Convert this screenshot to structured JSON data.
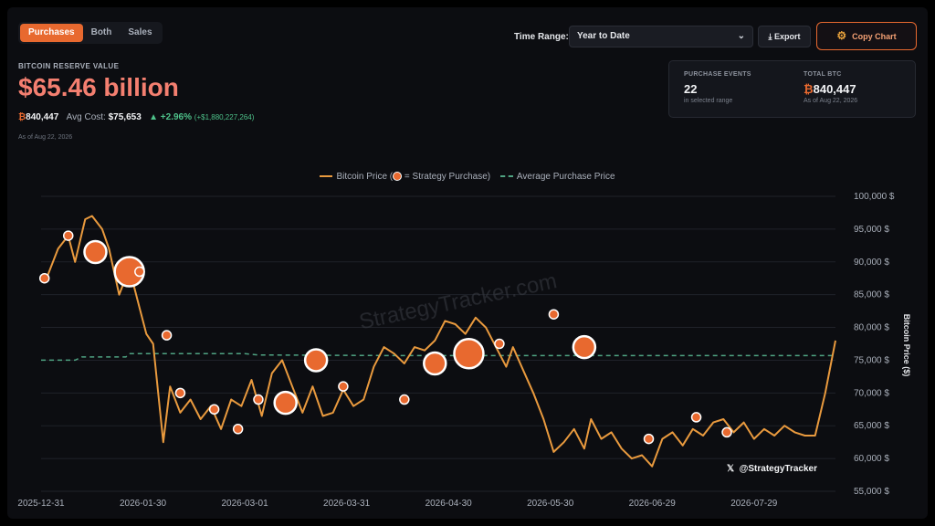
{
  "toolbar": {
    "tabs": [
      "Purchases",
      "Both",
      "Sales"
    ],
    "active_tab": "Purchases",
    "time_range_label": "Time Range:",
    "time_range_value": "Year to Date",
    "export_label": "Export",
    "copy_chart_label": "Copy Chart"
  },
  "summary": {
    "label": "BITCOIN RESERVE VALUE",
    "value": "$65.46 billion",
    "btc_symbol": "₿",
    "btc_amount": "840,447",
    "avg_cost_label": "Avg Cost:",
    "avg_cost": "$75,653",
    "change_pct": "+2.96%",
    "change_abs": "(+$1,880,227,264)",
    "as_of": "As of Aug 22, 2026"
  },
  "card": {
    "events_label": "PURCHASE EVENTS",
    "events_value": "22",
    "events_sub": "in selected range",
    "total_label": "TOTAL BTC",
    "total_value": "840,447",
    "total_sub": "As of Aug 22, 2026"
  },
  "legend": {
    "price_before": "Bitcoin Price (",
    "price_after": " = Strategy Purchase)",
    "avg": "Average Purchase Price"
  },
  "watermark": "StrategyTracker.com",
  "handle": "@StrategyTracker",
  "x_icon": "x-logo",
  "colors": {
    "accent": "#e8692f",
    "price_line": "#e99a3e",
    "avg_line": "#4fa382",
    "headline": "#f47f70",
    "positive": "#4ec28a"
  },
  "chart_data": {
    "type": "line",
    "ylabel": "Bitcoin Price ($)",
    "ylim": [
      55000,
      100000
    ],
    "y_ticks": [
      55000,
      60000,
      65000,
      70000,
      75000,
      80000,
      85000,
      90000,
      95000,
      100000
    ],
    "y_tick_labels": [
      "55,000 $",
      "60,000 $",
      "65,000 $",
      "70,000 $",
      "75,000 $",
      "80,000 $",
      "85,000 $",
      "90,000 $",
      "95,000 $",
      "100,000 $"
    ],
    "x_range": [
      "2025-12-31",
      "2026-08-22"
    ],
    "x_ticks": [
      "2025-12-31",
      "2026-01-30",
      "2026-03-01",
      "2026-03-31",
      "2026-04-30",
      "2026-05-30",
      "2026-06-29",
      "2026-07-29"
    ],
    "series": [
      {
        "type": "line",
        "points": [
          [
            "2026-01-02",
            88000
          ],
          [
            "2026-01-05",
            92000
          ],
          [
            "2026-01-08",
            94000
          ],
          [
            "2026-01-10",
            90000
          ],
          [
            "2026-01-13",
            96500
          ],
          [
            "2026-01-15",
            97000
          ],
          [
            "2026-01-18",
            95000
          ],
          [
            "2026-01-20",
            92000
          ],
          [
            "2026-01-23",
            85000
          ],
          [
            "2026-01-26",
            89000
          ],
          [
            "2026-01-29",
            83000
          ],
          [
            "2026-01-31",
            79000
          ],
          [
            "2026-02-02",
            77500
          ],
          [
            "2026-02-05",
            62500
          ],
          [
            "2026-02-07",
            71000
          ],
          [
            "2026-02-10",
            67000
          ],
          [
            "2026-02-13",
            69000
          ],
          [
            "2026-02-16",
            66000
          ],
          [
            "2026-02-19",
            68000
          ],
          [
            "2026-02-22",
            64500
          ],
          [
            "2026-02-25",
            69000
          ],
          [
            "2026-02-28",
            68000
          ],
          [
            "2026-03-03",
            72000
          ],
          [
            "2026-03-06",
            66500
          ],
          [
            "2026-03-09",
            73000
          ],
          [
            "2026-03-12",
            75000
          ],
          [
            "2026-03-15",
            71000
          ],
          [
            "2026-03-18",
            67000
          ],
          [
            "2026-03-21",
            71000
          ],
          [
            "2026-03-24",
            66500
          ],
          [
            "2026-03-27",
            67000
          ],
          [
            "2026-03-30",
            70500
          ],
          [
            "2026-04-02",
            68000
          ],
          [
            "2026-04-05",
            69000
          ],
          [
            "2026-04-08",
            74000
          ],
          [
            "2026-04-11",
            77000
          ],
          [
            "2026-04-14",
            76000
          ],
          [
            "2026-04-17",
            74500
          ],
          [
            "2026-04-20",
            77000
          ],
          [
            "2026-04-23",
            76500
          ],
          [
            "2026-04-26",
            78000
          ],
          [
            "2026-04-29",
            81000
          ],
          [
            "2026-05-02",
            80500
          ],
          [
            "2026-05-05",
            79000
          ],
          [
            "2026-05-08",
            81500
          ],
          [
            "2026-05-11",
            80000
          ],
          [
            "2026-05-14",
            77000
          ],
          [
            "2026-05-17",
            74000
          ],
          [
            "2026-05-19",
            77000
          ],
          [
            "2026-05-22",
            73500
          ],
          [
            "2026-05-25",
            70000
          ],
          [
            "2026-05-28",
            66000
          ],
          [
            "2026-05-31",
            61000
          ],
          [
            "2026-06-03",
            62500
          ],
          [
            "2026-06-06",
            64500
          ],
          [
            "2026-06-09",
            61500
          ],
          [
            "2026-06-11",
            66000
          ],
          [
            "2026-06-14",
            63000
          ],
          [
            "2026-06-17",
            64000
          ],
          [
            "2026-06-20",
            61500
          ],
          [
            "2026-06-23",
            60000
          ],
          [
            "2026-06-26",
            60500
          ],
          [
            "2026-06-29",
            58800
          ],
          [
            "2026-07-02",
            63000
          ],
          [
            "2026-07-05",
            64000
          ],
          [
            "2026-07-08",
            62000
          ],
          [
            "2026-07-11",
            64500
          ],
          [
            "2026-07-14",
            63500
          ],
          [
            "2026-07-17",
            65500
          ],
          [
            "2026-07-20",
            66000
          ],
          [
            "2026-07-23",
            64000
          ],
          [
            "2026-07-26",
            65500
          ],
          [
            "2026-07-29",
            63000
          ],
          [
            "2026-08-01",
            64500
          ],
          [
            "2026-08-04",
            63500
          ],
          [
            "2026-08-07",
            65000
          ],
          [
            "2026-08-10",
            64000
          ],
          [
            "2026-08-13",
            63500
          ],
          [
            "2026-08-16",
            63500
          ],
          [
            "2026-08-19",
            70000
          ],
          [
            "2026-08-22",
            78000
          ]
        ]
      },
      {
        "type": "dashed-line",
        "points": [
          [
            "2025-12-31",
            75000
          ],
          [
            "2026-01-10",
            75000
          ],
          [
            "2026-01-12",
            75500
          ],
          [
            "2026-01-25",
            75500
          ],
          [
            "2026-01-26",
            76000
          ],
          [
            "2026-03-01",
            76000
          ],
          [
            "2026-03-05",
            75800
          ],
          [
            "2026-04-15",
            75700
          ],
          [
            "2026-08-22",
            75700
          ]
        ]
      },
      {
        "type": "purchases",
        "points": [
          [
            "2026-01-01",
            87500,
            1
          ],
          [
            "2026-01-08",
            94000,
            1
          ],
          [
            "2026-01-16",
            91500,
            2
          ],
          [
            "2026-01-26",
            88500,
            3
          ],
          [
            "2026-01-29",
            88500,
            1
          ],
          [
            "2026-02-06",
            78800,
            1
          ],
          [
            "2026-02-10",
            70000,
            1
          ],
          [
            "2026-02-20",
            67500,
            1
          ],
          [
            "2026-02-27",
            64500,
            1
          ],
          [
            "2026-03-05",
            69000,
            1
          ],
          [
            "2026-03-13",
            68500,
            2
          ],
          [
            "2026-03-22",
            75000,
            2
          ],
          [
            "2026-03-30",
            71000,
            1
          ],
          [
            "2026-04-17",
            69000,
            1
          ],
          [
            "2026-04-26",
            74500,
            2
          ],
          [
            "2026-05-06",
            76000,
            3
          ],
          [
            "2026-05-15",
            77500,
            1
          ],
          [
            "2026-05-31",
            82000,
            1
          ],
          [
            "2026-06-09",
            77000,
            2
          ],
          [
            "2026-06-28",
            63000,
            1
          ],
          [
            "2026-07-12",
            66300,
            1
          ],
          [
            "2026-07-21",
            64000,
            1
          ]
        ]
      }
    ]
  }
}
